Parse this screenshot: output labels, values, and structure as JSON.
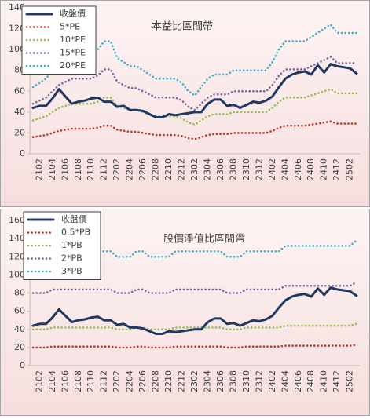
{
  "chart_data": [
    {
      "type": "line",
      "title": "本益比區間帶",
      "categories": [
        null,
        "2102",
        null,
        "2104",
        null,
        "2106",
        null,
        "2108",
        null,
        "2110",
        null,
        "2112",
        null,
        "2202",
        null,
        "2204",
        null,
        "2206",
        null,
        "2208",
        null,
        "2210",
        null,
        "2212",
        null,
        "2302",
        null,
        "2304",
        null,
        "2306",
        null,
        "2308",
        null,
        "2310",
        null,
        "2312",
        null,
        "2402",
        null,
        "2404",
        null,
        "2406",
        null,
        "2408",
        null,
        "2410",
        null,
        "2412",
        null,
        "2502",
        null
      ],
      "ylim": [
        0,
        140
      ],
      "yticks": [
        0,
        20,
        40,
        60,
        80,
        100,
        120,
        140
      ],
      "grid": false,
      "legend": "top-left",
      "series": [
        {
          "name": "收盤價",
          "color": "#1f3864",
          "values": [
            44,
            46,
            46,
            53,
            62,
            55,
            48,
            50,
            51,
            53,
            54,
            50,
            50,
            45,
            46,
            42,
            42,
            41,
            38,
            35,
            35,
            38,
            37,
            38,
            39,
            40,
            40,
            48,
            52,
            52,
            46,
            47,
            44,
            47,
            50,
            49,
            51,
            55,
            64,
            72,
            76,
            78,
            79,
            76,
            85,
            78,
            86,
            84,
            83,
            82,
            77
          ]
        },
        {
          "name": "5*PE",
          "color": "#c0392b",
          "values": [
            16,
            17,
            18,
            20,
            22,
            23,
            24,
            24,
            24,
            24,
            25,
            27,
            27,
            23,
            22,
            21,
            21,
            20,
            19,
            18,
            18,
            18,
            18,
            17,
            15,
            14,
            16,
            18,
            19,
            19,
            19,
            20,
            20,
            20,
            20,
            20,
            20,
            22,
            25,
            27,
            27,
            27,
            27,
            28,
            29,
            30,
            31,
            29,
            29,
            29,
            29
          ]
        },
        {
          "name": "10*PE",
          "color": "#9bbb59",
          "values": [
            32,
            34,
            36,
            40,
            44,
            46,
            48,
            48,
            48,
            48,
            50,
            54,
            54,
            46,
            44,
            42,
            42,
            40,
            38,
            36,
            36,
            36,
            36,
            34,
            30,
            28,
            32,
            36,
            38,
            38,
            38,
            40,
            40,
            40,
            40,
            40,
            40,
            44,
            50,
            54,
            54,
            54,
            54,
            56,
            58,
            60,
            62,
            58,
            58,
            58,
            58
          ]
        },
        {
          "name": "15*PE",
          "color": "#8064a2",
          "values": [
            48,
            51,
            54,
            60,
            66,
            69,
            72,
            72,
            72,
            72,
            75,
            81,
            81,
            69,
            66,
            63,
            63,
            60,
            57,
            54,
            54,
            54,
            54,
            51,
            45,
            42,
            48,
            54,
            57,
            57,
            57,
            60,
            60,
            60,
            60,
            60,
            60,
            66,
            75,
            81,
            81,
            81,
            81,
            84,
            87,
            90,
            93,
            87,
            87,
            87,
            87
          ]
        },
        {
          "name": "20*PE",
          "color": "#4bacc6",
          "values": [
            64,
            68,
            72,
            80,
            88,
            92,
            96,
            96,
            96,
            96,
            100,
            108,
            108,
            92,
            88,
            84,
            84,
            80,
            76,
            72,
            72,
            72,
            72,
            68,
            60,
            56,
            64,
            72,
            76,
            76,
            76,
            80,
            80,
            80,
            80,
            80,
            80,
            88,
            100,
            108,
            108,
            108,
            108,
            112,
            116,
            120,
            124,
            116,
            116,
            116,
            116
          ]
        }
      ]
    },
    {
      "type": "line",
      "title": "股價淨值比區間帶",
      "categories": [
        null,
        "2102",
        null,
        "2104",
        null,
        "2106",
        null,
        "2108",
        null,
        "2110",
        null,
        "2112",
        null,
        "2202",
        null,
        "2204",
        null,
        "2206",
        null,
        "2208",
        null,
        "2210",
        null,
        "2212",
        null,
        "2302",
        null,
        "2304",
        null,
        "2306",
        null,
        "2308",
        null,
        "2310",
        null,
        "2312",
        null,
        "2402",
        null,
        "2404",
        null,
        "2406",
        null,
        "2408",
        null,
        "2410",
        null,
        "2412",
        null,
        "2502",
        null
      ],
      "ylim": [
        0,
        160
      ],
      "yticks": [
        0,
        20,
        40,
        60,
        80,
        100,
        120,
        140,
        160
      ],
      "grid": false,
      "legend": "top-left",
      "series": [
        {
          "name": "收盤價",
          "color": "#1f3864",
          "values": [
            44,
            46,
            46,
            53,
            62,
            55,
            48,
            50,
            51,
            53,
            54,
            50,
            50,
            45,
            46,
            42,
            42,
            41,
            38,
            35,
            35,
            38,
            37,
            38,
            39,
            40,
            40,
            48,
            52,
            52,
            46,
            47,
            44,
            47,
            50,
            49,
            51,
            55,
            64,
            72,
            76,
            78,
            79,
            76,
            85,
            78,
            86,
            84,
            83,
            82,
            77
          ]
        },
        {
          "name": "0.5*PB",
          "color": "#c0392b",
          "values": [
            20,
            20,
            20,
            21,
            21,
            21,
            21,
            21,
            21,
            21,
            21,
            21,
            21,
            20,
            20,
            20,
            21,
            21,
            20,
            20,
            20,
            20,
            21,
            21,
            21,
            21,
            21,
            21,
            21,
            21,
            20,
            20,
            20,
            21,
            21,
            21,
            21,
            21,
            21,
            22,
            22,
            22,
            22,
            22,
            22,
            22,
            22,
            22,
            22,
            22,
            23
          ]
        },
        {
          "name": "1*PB",
          "color": "#9bbb59",
          "values": [
            40,
            40,
            40,
            42,
            42,
            42,
            42,
            42,
            42,
            42,
            42,
            42,
            42,
            40,
            40,
            40,
            42,
            42,
            40,
            40,
            40,
            40,
            42,
            42,
            42,
            42,
            42,
            42,
            42,
            42,
            40,
            40,
            40,
            42,
            42,
            42,
            42,
            42,
            42,
            44,
            44,
            44,
            44,
            44,
            44,
            44,
            44,
            44,
            44,
            44,
            46
          ]
        },
        {
          "name": "2*PB",
          "color": "#8064a2",
          "values": [
            80,
            80,
            80,
            84,
            84,
            84,
            84,
            84,
            84,
            84,
            84,
            84,
            84,
            80,
            80,
            80,
            84,
            84,
            80,
            80,
            80,
            80,
            84,
            84,
            84,
            84,
            84,
            84,
            84,
            84,
            80,
            80,
            80,
            84,
            84,
            84,
            84,
            84,
            84,
            88,
            88,
            88,
            88,
            88,
            88,
            88,
            88,
            88,
            88,
            88,
            92
          ]
        },
        {
          "name": "3*PB",
          "color": "#4bacc6",
          "values": [
            120,
            120,
            120,
            126,
            126,
            126,
            126,
            126,
            126,
            126,
            126,
            126,
            126,
            120,
            120,
            120,
            126,
            126,
            120,
            120,
            120,
            120,
            126,
            126,
            126,
            126,
            126,
            126,
            126,
            126,
            120,
            120,
            120,
            126,
            126,
            126,
            126,
            126,
            126,
            132,
            132,
            132,
            132,
            132,
            132,
            132,
            132,
            132,
            132,
            132,
            138
          ]
        }
      ]
    }
  ]
}
